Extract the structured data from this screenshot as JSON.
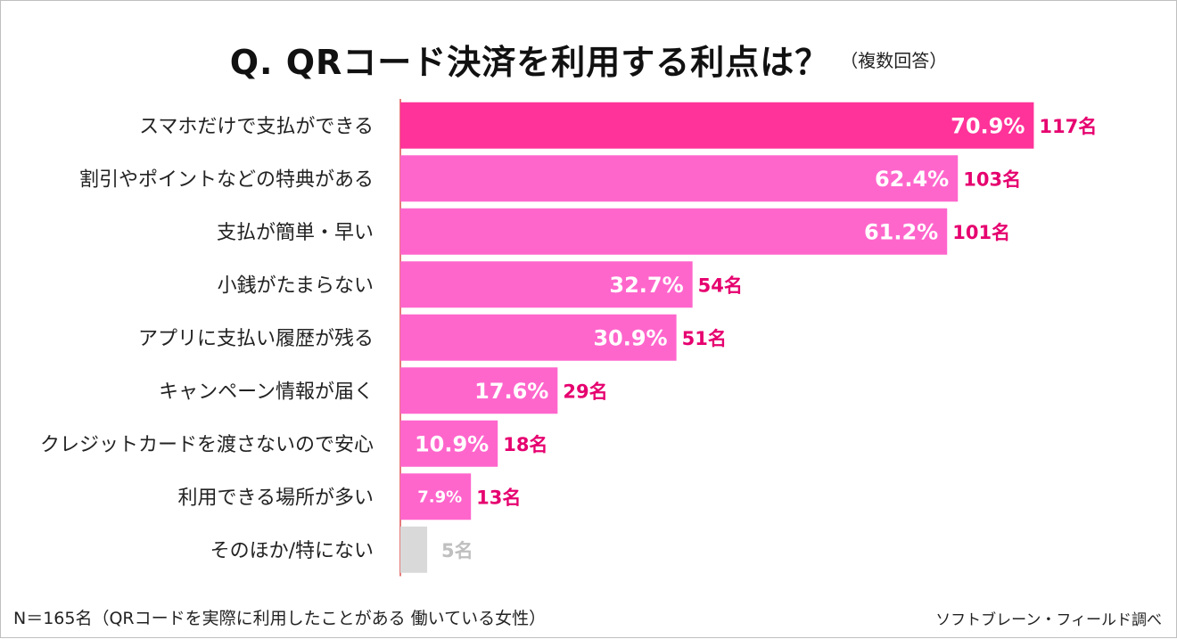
{
  "title": {
    "main": "Q.  QRコード決済を利用する利点は？",
    "sub": "（複数回答）"
  },
  "chart_data": {
    "type": "bar",
    "orientation": "horizontal",
    "categories": [
      "スマホだけで支払ができる",
      "割引やポイントなどの特典がある",
      "支払が簡単・早い",
      "小銭がたまらない",
      "アプリに支払い履歴が残る",
      "キャンペーン情報が届く",
      "クレジットカードを渡さないので安心",
      "利用できる場所が多い",
      "そのほか/特にない"
    ],
    "values": [
      70.9,
      62.4,
      61.2,
      32.7,
      30.9,
      17.6,
      10.9,
      7.9,
      3.0
    ],
    "value_labels": [
      "70.9%",
      "62.4%",
      "61.2%",
      "32.7%",
      "30.9%",
      "17.6%",
      "10.9%",
      "7.9%",
      ""
    ],
    "count_labels": [
      "117名",
      "103名",
      "101名",
      "54名",
      "51名",
      "29名",
      "18名",
      "13名",
      "5名"
    ],
    "xlim": [
      0,
      100
    ],
    "colors": {
      "top_bar": "#ff3399",
      "bar": "#ff66cc",
      "other_bar": "#d9d9d9",
      "count_text": "#e6006f",
      "other_count_text": "#bfbfbf",
      "axis_line": "#e67a7a"
    }
  },
  "footer": {
    "note": "N＝165名（QRコードを実際に利用したことがある 働いている女性）",
    "source": "ソフトブレーン・フィールド調べ"
  }
}
